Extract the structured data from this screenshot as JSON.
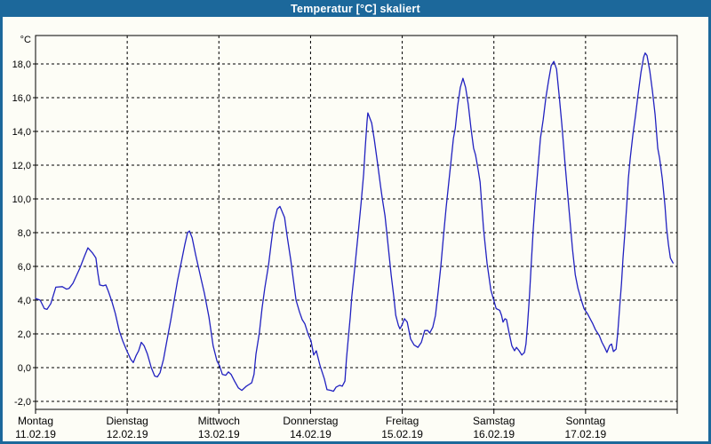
{
  "window": {
    "title": "Temperatur [°C] skaliert"
  },
  "colors": {
    "titlebar": "#1c689b",
    "frame": "#1c689b",
    "content_bg": "#fdfdf6",
    "grid": "#000000",
    "axis": "#000000",
    "text": "#000000",
    "title_text": "#ffffff",
    "line": "#2121c0"
  },
  "chart_data": {
    "type": "line",
    "title": "Temperatur [°C] skaliert",
    "y_unit_label": "°C",
    "grid": "dashed",
    "legend": "none",
    "ylim": [
      -2.47,
      19.68
    ],
    "x_range_hours": [
      0,
      168
    ],
    "y_ticks": [
      {
        "value": 18,
        "label": "18,0"
      },
      {
        "value": 16,
        "label": "16,0"
      },
      {
        "value": 14,
        "label": "14,0"
      },
      {
        "value": 12,
        "label": "12,0"
      },
      {
        "value": 10,
        "label": "10,0"
      },
      {
        "value": 8,
        "label": "8,0"
      },
      {
        "value": 6,
        "label": "6,0"
      },
      {
        "value": 4,
        "label": "4,0"
      },
      {
        "value": 2,
        "label": "2,0"
      },
      {
        "value": 0,
        "label": "0,0"
      },
      {
        "value": -2,
        "label": "-2,0"
      }
    ],
    "days": [
      {
        "name": "Montag",
        "date": "11.02.19"
      },
      {
        "name": "Dienstag",
        "date": "12.02.19"
      },
      {
        "name": "Mittwoch",
        "date": "13.02.19"
      },
      {
        "name": "Donnerstag",
        "date": "14.02.19"
      },
      {
        "name": "Freitag",
        "date": "15.02.19"
      },
      {
        "name": "Samstag",
        "date": "16.02.19"
      },
      {
        "name": "Sonntag",
        "date": "17.02.19"
      }
    ],
    "series": [
      {
        "name": "Temperatur",
        "color": "#2121c0",
        "points": [
          [
            0,
            4.1
          ],
          [
            1.2,
            4.0
          ],
          [
            2.3,
            3.5
          ],
          [
            3.0,
            3.45
          ],
          [
            4.0,
            3.8
          ],
          [
            5.3,
            4.77
          ],
          [
            7.0,
            4.8
          ],
          [
            8.1,
            4.65
          ],
          [
            8.8,
            4.7
          ],
          [
            9.8,
            5.0
          ],
          [
            11.6,
            5.9
          ],
          [
            12.8,
            6.6
          ],
          [
            13.7,
            7.1
          ],
          [
            14.9,
            6.8
          ],
          [
            15.8,
            6.5
          ],
          [
            16.3,
            5.6
          ],
          [
            16.8,
            4.9
          ],
          [
            17.7,
            4.85
          ],
          [
            18.4,
            4.9
          ],
          [
            19.1,
            4.5
          ],
          [
            20.0,
            3.9
          ],
          [
            20.9,
            3.2
          ],
          [
            21.9,
            2.2
          ],
          [
            22.8,
            1.6
          ],
          [
            23.7,
            1.1
          ],
          [
            24.9,
            0.5
          ],
          [
            25.6,
            0.3
          ],
          [
            26.3,
            0.7
          ],
          [
            27.0,
            1.0
          ],
          [
            27.7,
            1.5
          ],
          [
            28.4,
            1.3
          ],
          [
            29.3,
            0.8
          ],
          [
            30.3,
            0.0
          ],
          [
            31.2,
            -0.5
          ],
          [
            31.9,
            -0.55
          ],
          [
            32.6,
            -0.3
          ],
          [
            33.5,
            0.5
          ],
          [
            34.4,
            1.6
          ],
          [
            35.4,
            2.8
          ],
          [
            36.3,
            4.0
          ],
          [
            37.2,
            5.2
          ],
          [
            38.2,
            6.3
          ],
          [
            39.1,
            7.3
          ],
          [
            39.8,
            8.0
          ],
          [
            40.3,
            8.1
          ],
          [
            41.0,
            7.7
          ],
          [
            41.9,
            6.7
          ],
          [
            43.1,
            5.5
          ],
          [
            44.2,
            4.4
          ],
          [
            45.4,
            3.0
          ],
          [
            46.5,
            1.3
          ],
          [
            47.5,
            0.4
          ],
          [
            48.2,
            0.1
          ],
          [
            48.9,
            -0.4
          ],
          [
            49.8,
            -0.45
          ],
          [
            50.5,
            -0.25
          ],
          [
            51.2,
            -0.4
          ],
          [
            52.1,
            -0.8
          ],
          [
            53.1,
            -1.2
          ],
          [
            54.0,
            -1.35
          ],
          [
            55.2,
            -1.1
          ],
          [
            55.9,
            -1.0
          ],
          [
            56.6,
            -0.9
          ],
          [
            57.2,
            -0.4
          ],
          [
            57.7,
            0.8
          ],
          [
            58.6,
            2.05
          ],
          [
            59.3,
            3.5
          ],
          [
            60.0,
            4.7
          ],
          [
            61.0,
            6.1
          ],
          [
            61.7,
            7.4
          ],
          [
            62.4,
            8.6
          ],
          [
            63.3,
            9.4
          ],
          [
            64.0,
            9.55
          ],
          [
            65.2,
            8.9
          ],
          [
            65.9,
            7.75
          ],
          [
            66.8,
            6.4
          ],
          [
            67.5,
            5.2
          ],
          [
            68.2,
            4.0
          ],
          [
            69.1,
            3.3
          ],
          [
            69.8,
            2.85
          ],
          [
            70.5,
            2.6
          ],
          [
            71.4,
            1.95
          ],
          [
            72.1,
            1.6
          ],
          [
            72.8,
            0.75
          ],
          [
            73.5,
            1.0
          ],
          [
            74.5,
            0.1
          ],
          [
            75.6,
            -0.65
          ],
          [
            76.3,
            -1.3
          ],
          [
            77.3,
            -1.35
          ],
          [
            78.0,
            -1.4
          ],
          [
            78.7,
            -1.15
          ],
          [
            79.6,
            -1.05
          ],
          [
            80.3,
            -1.1
          ],
          [
            81.0,
            -0.8
          ],
          [
            81.4,
            0.5
          ],
          [
            81.9,
            1.8
          ],
          [
            82.4,
            3.0
          ],
          [
            82.8,
            4.2
          ],
          [
            83.3,
            5.3
          ],
          [
            83.8,
            6.4
          ],
          [
            84.5,
            8.0
          ],
          [
            85.2,
            9.7
          ],
          [
            85.9,
            11.5
          ],
          [
            86.3,
            13.0
          ],
          [
            86.8,
            14.6
          ],
          [
            87.0,
            15.1
          ],
          [
            88.0,
            14.5
          ],
          [
            88.7,
            13.5
          ],
          [
            89.6,
            12.0
          ],
          [
            90.3,
            10.8
          ],
          [
            90.8,
            10.0
          ],
          [
            91.5,
            9.0
          ],
          [
            92.2,
            7.5
          ],
          [
            93.1,
            5.5
          ],
          [
            93.8,
            4.2
          ],
          [
            94.3,
            3.1
          ],
          [
            95.0,
            2.5
          ],
          [
            95.4,
            2.3
          ],
          [
            95.9,
            2.5
          ],
          [
            96.6,
            2.9
          ],
          [
            97.3,
            2.7
          ],
          [
            98.2,
            1.7
          ],
          [
            99.1,
            1.35
          ],
          [
            100.1,
            1.2
          ],
          [
            101.0,
            1.5
          ],
          [
            101.9,
            2.2
          ],
          [
            102.7,
            2.2
          ],
          [
            103.2,
            2.05
          ],
          [
            104.0,
            2.4
          ],
          [
            104.7,
            3.1
          ],
          [
            105.4,
            4.5
          ],
          [
            106.1,
            6.0
          ],
          [
            106.8,
            7.8
          ],
          [
            107.5,
            9.5
          ],
          [
            108.2,
            11.0
          ],
          [
            108.9,
            12.5
          ],
          [
            109.4,
            13.6
          ],
          [
            109.9,
            14.2
          ],
          [
            110.5,
            15.5
          ],
          [
            111.2,
            16.6
          ],
          [
            111.9,
            17.15
          ],
          [
            112.6,
            16.6
          ],
          [
            113.3,
            15.6
          ],
          [
            114.0,
            14.2
          ],
          [
            114.7,
            13.0
          ],
          [
            115.2,
            12.6
          ],
          [
            115.9,
            11.7
          ],
          [
            116.4,
            11.0
          ],
          [
            117.3,
            8.2
          ],
          [
            118.2,
            6.2
          ],
          [
            119.2,
            4.6
          ],
          [
            120.1,
            3.9
          ],
          [
            120.6,
            3.5
          ],
          [
            121.5,
            3.4
          ],
          [
            122.0,
            3.1
          ],
          [
            122.4,
            2.7
          ],
          [
            122.9,
            2.9
          ],
          [
            123.3,
            2.85
          ],
          [
            124.0,
            2.05
          ],
          [
            124.7,
            1.3
          ],
          [
            125.4,
            1.0
          ],
          [
            125.9,
            1.2
          ],
          [
            126.6,
            1.0
          ],
          [
            127.3,
            0.75
          ],
          [
            128.0,
            0.9
          ],
          [
            128.4,
            1.4
          ],
          [
            128.8,
            2.5
          ],
          [
            129.3,
            4.2
          ],
          [
            129.8,
            6.2
          ],
          [
            130.3,
            8.2
          ],
          [
            130.8,
            9.8
          ],
          [
            131.5,
            11.7
          ],
          [
            132.2,
            13.6
          ],
          [
            132.9,
            14.7
          ],
          [
            133.6,
            16.0
          ],
          [
            134.3,
            17.0
          ],
          [
            135.0,
            17.9
          ],
          [
            135.7,
            18.15
          ],
          [
            136.4,
            17.7
          ],
          [
            137.1,
            16.1
          ],
          [
            137.8,
            14.4
          ],
          [
            138.6,
            12.2
          ],
          [
            139.3,
            10.3
          ],
          [
            139.9,
            8.8
          ],
          [
            140.6,
            7.0
          ],
          [
            141.3,
            5.5
          ],
          [
            142.0,
            4.7
          ],
          [
            142.9,
            4.0
          ],
          [
            143.6,
            3.5
          ],
          [
            144.5,
            3.2
          ],
          [
            145.2,
            2.9
          ],
          [
            145.9,
            2.6
          ],
          [
            146.6,
            2.25
          ],
          [
            147.6,
            1.9
          ],
          [
            148.3,
            1.5
          ],
          [
            149.0,
            1.2
          ],
          [
            149.6,
            0.9
          ],
          [
            150.3,
            1.3
          ],
          [
            150.8,
            1.4
          ],
          [
            151.3,
            0.95
          ],
          [
            152.0,
            1.1
          ],
          [
            152.4,
            2.0
          ],
          [
            152.9,
            3.5
          ],
          [
            153.4,
            5.0
          ],
          [
            153.8,
            6.5
          ],
          [
            154.3,
            8.0
          ],
          [
            154.8,
            9.7
          ],
          [
            155.2,
            11.2
          ],
          [
            155.7,
            12.4
          ],
          [
            156.4,
            13.8
          ],
          [
            157.1,
            15.0
          ],
          [
            157.8,
            16.3
          ],
          [
            158.5,
            17.5
          ],
          [
            159.2,
            18.4
          ],
          [
            159.6,
            18.65
          ],
          [
            160.1,
            18.5
          ],
          [
            160.8,
            17.6
          ],
          [
            161.5,
            16.4
          ],
          [
            162.2,
            15.0
          ],
          [
            162.9,
            13.0
          ],
          [
            163.4,
            12.4
          ],
          [
            164.1,
            11.2
          ],
          [
            164.8,
            9.6
          ],
          [
            165.2,
            8.3
          ],
          [
            165.7,
            7.3
          ],
          [
            166.2,
            6.5
          ],
          [
            166.9,
            6.2
          ]
        ]
      }
    ]
  }
}
